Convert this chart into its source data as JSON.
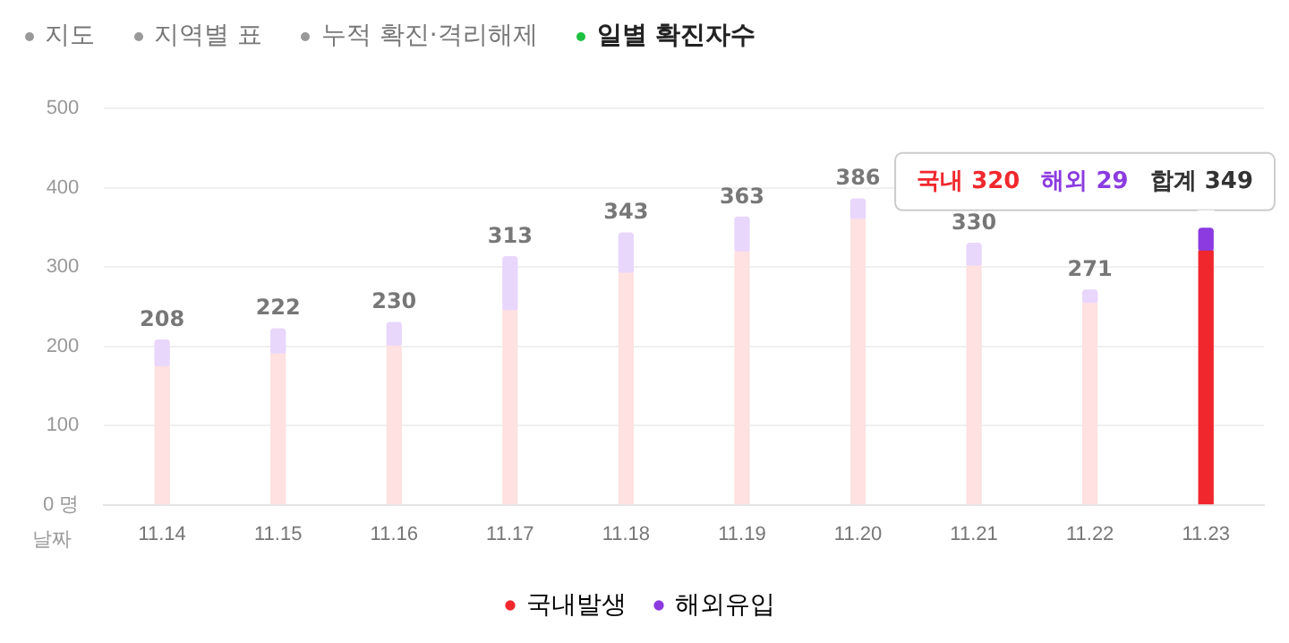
{
  "chart_data": {
    "type": "bar",
    "title": "일별 확진자수",
    "xlabel": "날짜",
    "stacked": true,
    "categories": [
      "11.14",
      "11.15",
      "11.16",
      "11.17",
      "11.18",
      "11.19",
      "11.20",
      "11.21",
      "11.22",
      "11.23"
    ],
    "series": [
      {
        "name": "국내발생",
        "color": "#f0282d",
        "colors": [
          "#ffe1e1",
          "#ffe1e1",
          "#ffe1e1",
          "#ffe1e1",
          "#ffe1e1",
          "#ffe1e1",
          "#ffe1e1",
          "#ffe1e1",
          "#ffe1e1",
          "#f0282d"
        ],
        "values": [
          174,
          190,
          200,
          245,
          292,
          319,
          360,
          301,
          254,
          320
        ]
      },
      {
        "name": "해외유입",
        "color": "#8b3be0",
        "colors": [
          "#e9d6fb",
          "#e9d6fb",
          "#e9d6fb",
          "#e9d6fb",
          "#e9d6fb",
          "#e9d6fb",
          "#e9d6fb",
          "#e9d6fb",
          "#e9d6fb",
          "#8b3be0"
        ],
        "values": [
          34,
          32,
          30,
          68,
          51,
          44,
          26,
          29,
          17,
          29
        ]
      }
    ],
    "totals": [
      "208",
      "222",
      "230",
      "313",
      "343",
      "363",
      "386",
      "330",
      "271",
      null
    ],
    "ylim": [
      0,
      500
    ],
    "yticks": [
      {
        "value": 0,
        "label": "0 명"
      },
      100,
      200,
      300,
      400,
      500
    ],
    "grid": "y",
    "legend": "bottom",
    "annotations": [
      "지도",
      "지역별 표",
      "누적 확진·격리해제",
      "국내 320",
      "해외 29",
      "합계 349"
    ]
  }
}
